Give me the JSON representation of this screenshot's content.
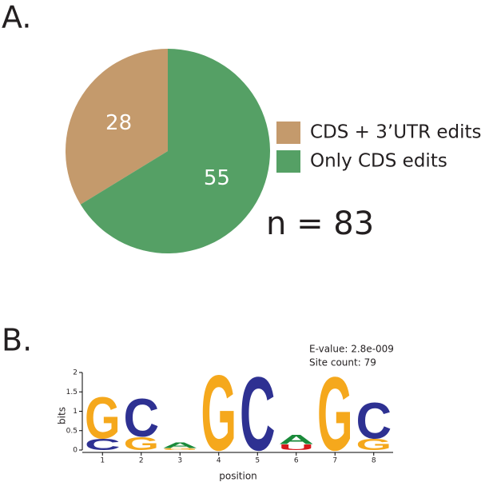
{
  "chart_data": [
    {
      "type": "pie",
      "panel_label": "A.",
      "categories": [
        "CDS + 3’UTR edits",
        "Only CDS edits"
      ],
      "values": [
        28,
        55
      ],
      "colors": [
        "#c49a6c",
        "#55a065"
      ],
      "annotation": "n = 83"
    },
    {
      "type": "logo",
      "panel_label": "B.",
      "annotations": [
        "E-value: 2.8e-009",
        "Site count: 79"
      ],
      "xlabel": "position",
      "ylabel": "bits",
      "categories": [
        1,
        2,
        3,
        4,
        5,
        6,
        7,
        8
      ],
      "series": [
        {
          "name": "A",
          "color": "#1a8a3a",
          "values": [
            null,
            null,
            0.15,
            null,
            null,
            0.25,
            null,
            null
          ]
        },
        {
          "name": "C",
          "color": "#2e3192",
          "values": [
            0.3,
            1.0,
            null,
            null,
            1.95,
            null,
            null,
            0.95
          ]
        },
        {
          "name": "G",
          "color": "#f5a81c",
          "values": [
            1.1,
            0.35,
            0.05,
            2.0,
            null,
            null,
            1.95,
            0.3
          ]
        },
        {
          "name": "U",
          "color": "#d7191c",
          "values": [
            null,
            null,
            null,
            null,
            null,
            0.15,
            null,
            null
          ]
        }
      ],
      "xlim": [
        0.5,
        8.5
      ],
      "xticks": [
        1,
        2,
        3,
        4,
        5,
        6,
        7,
        8
      ],
      "ylim": [
        0,
        2
      ],
      "yticks": [
        0,
        0.5,
        1,
        1.5,
        2
      ]
    }
  ]
}
